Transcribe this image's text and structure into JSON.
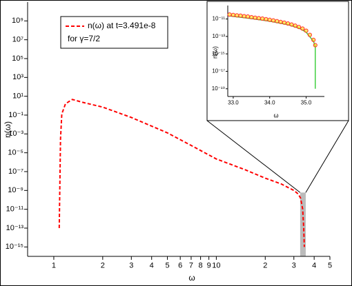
{
  "chart_data": [
    {
      "type": "line",
      "xlabel": "ω",
      "ylabel": "n(ω)",
      "xlog": true,
      "ylog": true,
      "xlim": [
        0.69,
        50
      ],
      "ylim": [
        1e-16,
        100000000000.0
      ],
      "xticks": [
        1,
        2,
        3,
        4,
        5,
        6,
        7,
        8,
        9,
        10,
        {
          "value": 20,
          "label": "2"
        },
        {
          "value": 30,
          "label": "3"
        },
        {
          "value": 40,
          "label": "4"
        },
        {
          "value": 50,
          "label": "5"
        }
      ],
      "yticks": [
        {
          "value": 1000000000.0,
          "label": "10⁹"
        },
        {
          "value": 10000000.0,
          "label": "10⁷"
        },
        {
          "value": 100000.0,
          "label": "10⁵"
        },
        {
          "value": 1000.0,
          "label": "10³"
        },
        {
          "value": 10,
          "label": "10¹"
        },
        {
          "value": 0.1,
          "label": "10⁻¹"
        },
        {
          "value": 0.001,
          "label": "10⁻³"
        },
        {
          "value": 1e-05,
          "label": "10⁻⁵"
        },
        {
          "value": 1e-07,
          "label": "10⁻⁷"
        },
        {
          "value": 1e-09,
          "label": "10⁻⁹"
        },
        {
          "value": 1e-11,
          "label": "10⁻¹¹"
        },
        {
          "value": 1e-13,
          "label": "10⁻¹³"
        },
        {
          "value": 1e-15,
          "label": "10⁻¹⁵"
        }
      ],
      "series": [
        {
          "name": "n(ω) at t=3.491e-8",
          "color": "#ff0000",
          "dash": true,
          "x": [
            1.08,
            1.1,
            1.12,
            1.18,
            1.3,
            1.5,
            2,
            3,
            5,
            7,
            10,
            15,
            20,
            25,
            30,
            32,
            33,
            34,
            34.5,
            34.8
          ],
          "values": [
            1e-13,
            0.0003,
            0.13,
            1.6,
            4.6,
            2.3,
            0.7,
            0.056,
            0.0013,
            6e-05,
            2.2e-06,
            1.6e-07,
            2e-08,
            5e-09,
            1e-09,
            4e-10,
            1.5e-10,
            1e-11,
            1e-13,
            1e-15
          ]
        }
      ],
      "annotation": "for  γ=7/2",
      "zoom_band": {
        "xlim": [
          32.8,
          35.5
        ],
        "ylim": [
          1e-16,
          6e-10
        ],
        "color": "#bbbbbb"
      }
    },
    {
      "type": "line",
      "xlabel": "ω",
      "ylabel": "n(ω)",
      "xlog": false,
      "ylog": true,
      "xlim": [
        32.85,
        35.5
      ],
      "ylim": [
        1.3e-20,
        3.5e-10
      ],
      "xticks": [
        {
          "value": 33,
          "label": "33.0"
        },
        {
          "value": 34,
          "label": "34.0"
        },
        {
          "value": 35,
          "label": "35.0"
        }
      ],
      "yticks": [
        {
          "value": 1e-11,
          "label": "10⁻¹¹"
        },
        {
          "value": 1e-13,
          "label": "10⁻¹³"
        },
        {
          "value": 1e-15,
          "label": "10⁻¹⁵"
        },
        {
          "value": 1e-17,
          "label": "10⁻¹⁷"
        },
        {
          "value": 1e-19,
          "label": "10⁻¹⁹"
        }
      ],
      "series": [
        {
          "color": "#33cc33",
          "x": [
            32.9,
            33.5,
            34.0,
            34.5,
            34.8,
            35.0,
            35.1,
            35.2,
            35.25,
            35.25
          ],
          "values": [
            2.2e-11,
            1.1e-11,
            5.5e-12,
            2.2e-12,
            9e-13,
            3e-13,
            9e-14,
            2.8e-14,
            7e-15,
            1e-19
          ]
        },
        {
          "color": "#ff3333",
          "marker": "circle",
          "x": [
            32.9,
            33.0,
            33.1,
            33.2,
            33.3,
            33.4,
            33.5,
            33.6,
            33.7,
            33.8,
            33.9,
            34.0,
            34.1,
            34.2,
            34.3,
            34.4,
            34.5,
            34.6,
            34.7,
            34.8,
            34.9,
            35.0,
            35.1,
            35.2,
            35.25
          ],
          "values": [
            3.2e-11,
            2.9e-11,
            2.6e-11,
            2.4e-11,
            2.1e-11,
            1.9e-11,
            1.6e-11,
            1.4e-11,
            1.25e-11,
            1.1e-11,
            9.5e-12,
            8e-12,
            6.8e-12,
            5.6e-12,
            4.6e-12,
            3.8e-12,
            3e-12,
            2.3e-12,
            1.7e-12,
            1.2e-12,
            8e-13,
            4.5e-13,
            1.5e-13,
            4e-14,
            1e-14
          ]
        }
      ]
    }
  ]
}
